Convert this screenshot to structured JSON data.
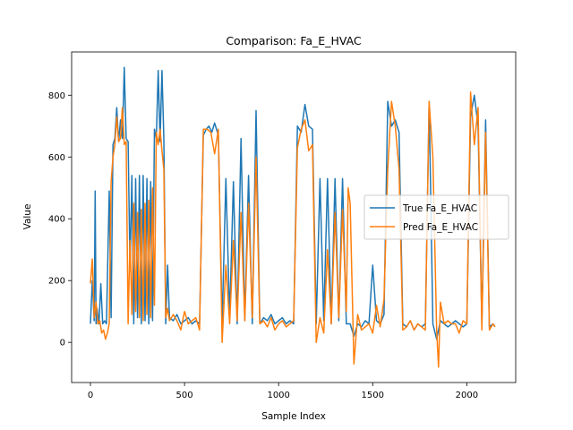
{
  "chart_data": {
    "type": "line",
    "title": "Comparison: Fa_E_HVAC",
    "xlabel": "Sample Index",
    "ylabel": "Value",
    "xlim": [
      -100,
      2260
    ],
    "ylim": [
      -130,
      940
    ],
    "xticks": [
      0,
      500,
      1000,
      1500,
      2000
    ],
    "yticks": [
      0,
      200,
      400,
      600,
      800
    ],
    "grid": false,
    "legend_position": "center-right",
    "series": [
      {
        "name": "True Fa_E_HVAC",
        "color": "#1f77b4",
        "x": [
          0,
          10,
          20,
          25,
          30,
          35,
          45,
          55,
          65,
          75,
          85,
          100,
          110,
          120,
          130,
          140,
          150,
          160,
          170,
          180,
          190,
          200,
          210,
          220,
          230,
          240,
          250,
          260,
          270,
          280,
          290,
          300,
          310,
          320,
          330,
          340,
          350,
          360,
          370,
          380,
          390,
          400,
          410,
          420,
          440,
          460,
          480,
          500,
          520,
          540,
          560,
          580,
          600,
          615,
          630,
          645,
          660,
          680,
          700,
          720,
          740,
          760,
          780,
          800,
          820,
          840,
          860,
          880,
          900,
          920,
          940,
          960,
          980,
          1000,
          1020,
          1040,
          1060,
          1080,
          1100,
          1120,
          1140,
          1160,
          1180,
          1200,
          1220,
          1240,
          1260,
          1280,
          1300,
          1320,
          1340,
          1360,
          1380,
          1400,
          1420,
          1440,
          1460,
          1480,
          1500,
          1520,
          1540,
          1560,
          1580,
          1600,
          1620,
          1640,
          1660,
          1680,
          1700,
          1720,
          1740,
          1760,
          1780,
          1800,
          1820,
          1840,
          1860,
          1880,
          1900,
          1920,
          1940,
          1960,
          1980,
          2000,
          2020,
          2040,
          2060,
          2080,
          2100,
          2120,
          2140,
          2150
        ],
        "values": [
          60,
          200,
          70,
          490,
          60,
          110,
          60,
          190,
          60,
          70,
          60,
          490,
          80,
          640,
          660,
          760,
          650,
          720,
          660,
          890,
          660,
          650,
          240,
          540,
          60,
          530,
          80,
          540,
          60,
          540,
          70,
          530,
          60,
          520,
          70,
          690,
          660,
          880,
          650,
          880,
          660,
          60,
          250,
          80,
          70,
          90,
          60,
          70,
          80,
          60,
          70,
          60,
          670,
          690,
          700,
          680,
          710,
          670,
          60,
          530,
          80,
          520,
          60,
          660,
          70,
          540,
          60,
          750,
          60,
          80,
          70,
          90,
          60,
          70,
          80,
          60,
          70,
          60,
          700,
          680,
          770,
          700,
          690,
          60,
          530,
          70,
          530,
          60,
          530,
          70,
          530,
          60,
          60,
          20,
          60,
          50,
          70,
          60,
          250,
          70,
          60,
          90,
          780,
          700,
          720,
          680,
          60,
          50,
          70,
          40,
          60,
          50,
          60,
          780,
          60,
          10,
          70,
          60,
          50,
          60,
          70,
          60,
          50,
          60,
          730,
          800,
          700,
          60,
          720,
          50,
          60,
          50
        ]
      },
      {
        "name": "Pred Fa_E_HVAC",
        "color": "#ff7f0e",
        "x": [
          0,
          10,
          20,
          30,
          40,
          50,
          60,
          70,
          80,
          90,
          100,
          110,
          120,
          130,
          140,
          150,
          160,
          170,
          180,
          190,
          200,
          210,
          220,
          230,
          240,
          250,
          260,
          270,
          280,
          290,
          300,
          310,
          320,
          330,
          340,
          350,
          360,
          370,
          380,
          390,
          400,
          410,
          420,
          440,
          460,
          480,
          500,
          520,
          540,
          560,
          580,
          600,
          620,
          640,
          660,
          680,
          700,
          720,
          740,
          760,
          780,
          800,
          820,
          840,
          860,
          880,
          900,
          920,
          940,
          960,
          980,
          1000,
          1020,
          1040,
          1060,
          1080,
          1100,
          1120,
          1140,
          1160,
          1180,
          1200,
          1220,
          1240,
          1260,
          1280,
          1300,
          1320,
          1340,
          1360,
          1370,
          1380,
          1400,
          1420,
          1440,
          1460,
          1480,
          1500,
          1520,
          1540,
          1560,
          1580,
          1600,
          1620,
          1640,
          1660,
          1680,
          1700,
          1720,
          1740,
          1760,
          1780,
          1800,
          1820,
          1840,
          1850,
          1860,
          1880,
          1900,
          1920,
          1940,
          1960,
          1980,
          2000,
          2020,
          2040,
          2060,
          2080,
          2100,
          2120,
          2140,
          2150
        ],
        "values": [
          190,
          270,
          80,
          130,
          60,
          70,
          30,
          40,
          10,
          30,
          60,
          520,
          600,
          640,
          730,
          650,
          660,
          760,
          640,
          650,
          60,
          330,
          90,
          450,
          100,
          420,
          80,
          430,
          70,
          450,
          90,
          460,
          80,
          500,
          120,
          680,
          640,
          690,
          620,
          560,
          80,
          110,
          70,
          90,
          70,
          40,
          100,
          60,
          70,
          80,
          40,
          690,
          690,
          680,
          610,
          690,
          0,
          250,
          60,
          330,
          70,
          420,
          70,
          450,
          80,
          600,
          60,
          70,
          50,
          80,
          40,
          60,
          70,
          50,
          60,
          70,
          630,
          690,
          720,
          620,
          640,
          0,
          80,
          30,
          300,
          60,
          420,
          80,
          430,
          100,
          500,
          450,
          -70,
          90,
          40,
          50,
          60,
          30,
          120,
          50,
          140,
          560,
          780,
          700,
          560,
          40,
          50,
          70,
          40,
          60,
          50,
          40,
          780,
          600,
          40,
          -80,
          130,
          60,
          70,
          60,
          60,
          30,
          70,
          60,
          810,
          640,
          760,
          40,
          680,
          40,
          60,
          50
        ]
      }
    ]
  }
}
